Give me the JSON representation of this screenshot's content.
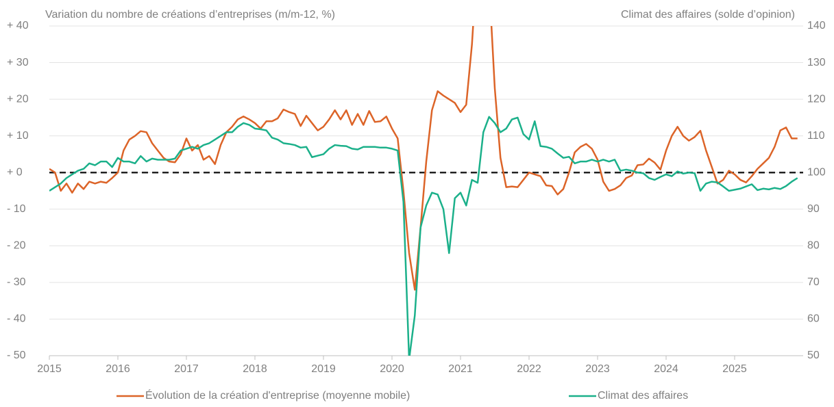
{
  "chart_data": {
    "type": "line",
    "y_label": "Variation du nombre de créations d’entreprises (m/m-12, %)",
    "y2_label": "Climat des affaires (solde d’opinion)",
    "x": [
      2015,
      2015.083,
      2015.167,
      2015.25,
      2015.333,
      2015.417,
      2015.5,
      2015.583,
      2015.667,
      2015.75,
      2015.833,
      2015.917,
      2016,
      2016.083,
      2016.167,
      2016.25,
      2016.333,
      2016.417,
      2016.5,
      2016.583,
      2016.667,
      2016.75,
      2016.833,
      2016.917,
      2017,
      2017.083,
      2017.167,
      2017.25,
      2017.333,
      2017.417,
      2017.5,
      2017.583,
      2017.667,
      2017.75,
      2017.833,
      2017.917,
      2018,
      2018.083,
      2018.167,
      2018.25,
      2018.333,
      2018.417,
      2018.5,
      2018.583,
      2018.667,
      2018.75,
      2018.833,
      2018.917,
      2019,
      2019.083,
      2019.167,
      2019.25,
      2019.333,
      2019.417,
      2019.5,
      2019.583,
      2019.667,
      2019.75,
      2019.833,
      2019.917,
      2020,
      2020.083,
      2020.167,
      2020.25,
      2020.333,
      2020.417,
      2020.5,
      2020.583,
      2020.667,
      2020.75,
      2020.833,
      2020.917,
      2021,
      2021.083,
      2021.167,
      2021.25,
      2021.333,
      2021.417,
      2021.5,
      2021.583,
      2021.667,
      2021.75,
      2021.833,
      2021.917,
      2022,
      2022.083,
      2022.167,
      2022.25,
      2022.333,
      2022.417,
      2022.5,
      2022.583,
      2022.667,
      2022.75,
      2022.833,
      2022.917,
      2023,
      2023.083,
      2023.167,
      2023.25,
      2023.333,
      2023.417,
      2023.5,
      2023.583,
      2023.667,
      2023.75,
      2023.833,
      2023.917,
      2024,
      2024.083,
      2024.167,
      2024.25,
      2024.333,
      2024.417,
      2024.5,
      2024.583,
      2024.667,
      2024.75,
      2024.833,
      2024.917,
      2025,
      2025.083,
      2025.167,
      2025.25,
      2025.333,
      2025.417,
      2025.5,
      2025.583,
      2025.667,
      2025.75,
      2025.833,
      2025.917
    ],
    "series": [
      {
        "name": "Évolution de la création d'entreprise (moyenne mobile)",
        "color": "#dc6428",
        "values": [
          1,
          0,
          -5,
          -3,
          -5.5,
          -3,
          -4.5,
          -2.5,
          -3,
          -2.5,
          -2.8,
          -1.5,
          0,
          6,
          9,
          10,
          11.3,
          11,
          8,
          6,
          4,
          3,
          2.8,
          5,
          9.3,
          6,
          7.5,
          3.5,
          4.5,
          2.3,
          7.5,
          11,
          12.5,
          14.5,
          15.3,
          14.5,
          13.5,
          12,
          14,
          14,
          14.8,
          17.2,
          16.5,
          16,
          12.7,
          15.5,
          13.5,
          11.5,
          12.5,
          14.5,
          17,
          14.5,
          17,
          13,
          16,
          13,
          16.8,
          13.8,
          14,
          15.3,
          12,
          9.3,
          -5,
          -22,
          -32,
          -15,
          3,
          17,
          22.2,
          21,
          20,
          19,
          16.5,
          18.5,
          35,
          60,
          65,
          52,
          23,
          4,
          -4,
          -3.8,
          -4,
          -2,
          0,
          -0.5,
          -1,
          -3.5,
          -3.7,
          -6,
          -4.5,
          0,
          5.5,
          7,
          7.8,
          6.5,
          3.5,
          -2.5,
          -5,
          -4.5,
          -3.5,
          -1.5,
          -0.8,
          2,
          2.2,
          3.8,
          2.7,
          0.8,
          6,
          10,
          12.5,
          10,
          8.7,
          9.7,
          11.4,
          6,
          1.5,
          -3,
          -2,
          0.5,
          -0.5,
          -2,
          -2.7,
          -1,
          1,
          2.5,
          4,
          7,
          11.5,
          12.3,
          9.3,
          9.3
        ]
      },
      {
        "name": "Climat des affaires",
        "color": "#1bb08a",
        "axis": "y2",
        "values": [
          95,
          96,
          97,
          98.5,
          99.5,
          100.5,
          101,
          102.5,
          102,
          103,
          103,
          101.5,
          104,
          103,
          103,
          102.5,
          104.5,
          103,
          103.8,
          103.5,
          103.5,
          103.5,
          103.8,
          106,
          106.5,
          107,
          106.5,
          107.5,
          108,
          109,
          110,
          111,
          111,
          112.5,
          113.5,
          113,
          112,
          111.8,
          111.5,
          109.5,
          109,
          108,
          107.8,
          107.5,
          106.8,
          107,
          104.2,
          104.6,
          105,
          106.5,
          107.5,
          107.3,
          107.2,
          106.5,
          106.3,
          107,
          107,
          107,
          106.8,
          106.8,
          106.5,
          106,
          92,
          49,
          61,
          85,
          91,
          94.5,
          94,
          90,
          78,
          93,
          94.5,
          91,
          98,
          97.2,
          111,
          115.2,
          113.5,
          111,
          112,
          114.5,
          115,
          110.5,
          109,
          114,
          107.2,
          107,
          106.5,
          105.2,
          104,
          104.3,
          102.5,
          103,
          103,
          103.5,
          103,
          103.5,
          103,
          103.5,
          100.5,
          100.8,
          100.5,
          100,
          99.8,
          98.5,
          98,
          98.8,
          99.5,
          99,
          100.3,
          99.7,
          100,
          99.8,
          95,
          97,
          97.5,
          97.3,
          96.2,
          95,
          95.3,
          95.6,
          96.2,
          96.8,
          95.2,
          95.6,
          95.4,
          95.8,
          95.5,
          96.3,
          97.5,
          98.5
        ]
      }
    ],
    "xlim": [
      2015,
      2026
    ],
    "xticks": [
      2015,
      2016,
      2017,
      2018,
      2019,
      2020,
      2021,
      2022,
      2023,
      2024,
      2025
    ],
    "ylim": [
      -50,
      40
    ],
    "yticks": [
      {
        "value": -50,
        "label": "- 50"
      },
      {
        "value": -40,
        "label": "- 40"
      },
      {
        "value": -30,
        "label": "- 30"
      },
      {
        "value": -20,
        "label": "- 20"
      },
      {
        "value": -10,
        "label": "- 10"
      },
      {
        "value": 0,
        "label": "+ 0"
      },
      {
        "value": 10,
        "label": "+ 10"
      },
      {
        "value": 20,
        "label": "+ 20"
      },
      {
        "value": 30,
        "label": "+ 30"
      },
      {
        "value": 40,
        "label": "+ 40"
      }
    ],
    "y2lim": [
      50,
      140
    ],
    "y2ticks": [
      50,
      60,
      70,
      80,
      90,
      100,
      110,
      120,
      130,
      140
    ],
    "grid": true
  }
}
